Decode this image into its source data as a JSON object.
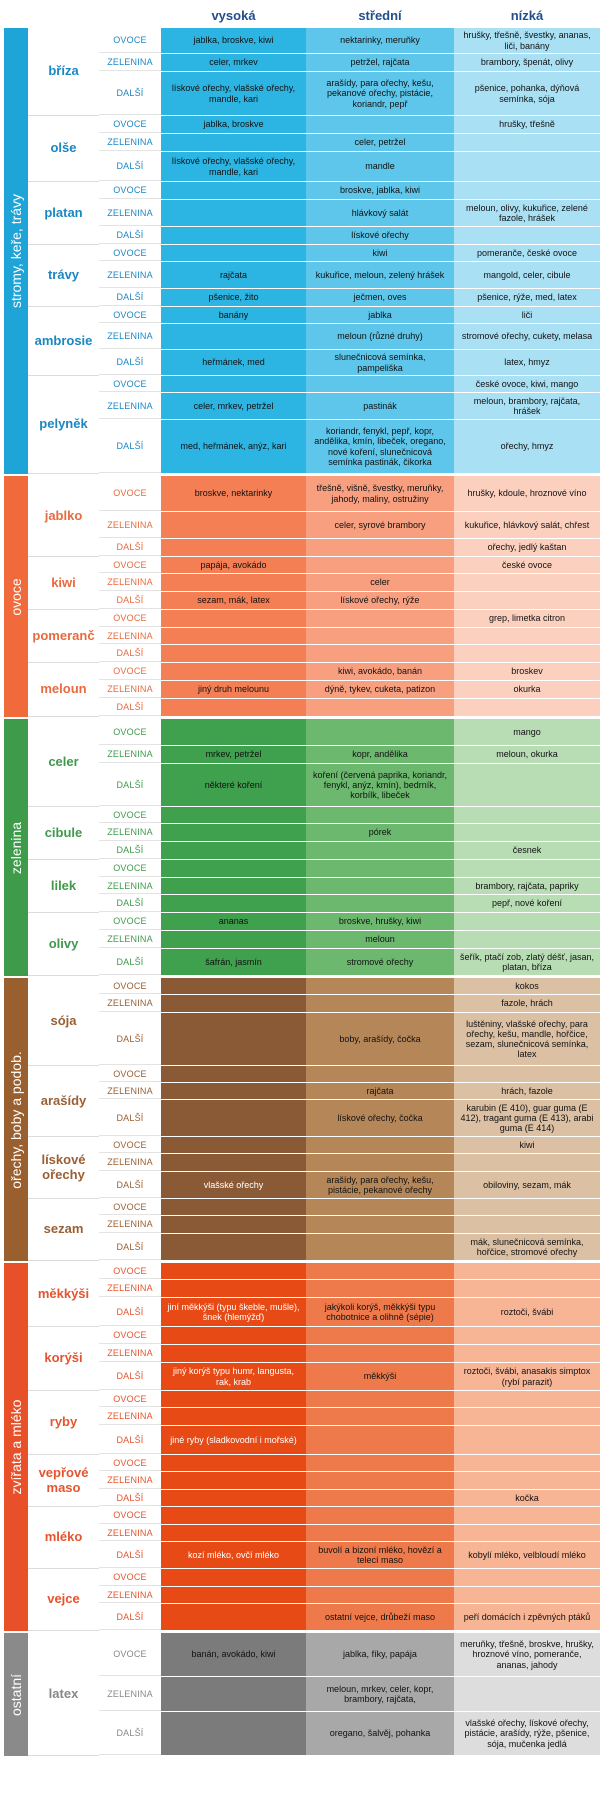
{
  "header": {
    "high": "vysoká",
    "medium": "střední",
    "low": "nízká"
  },
  "groups": [
    {
      "id": "trees",
      "label": "stromy, keře, trávy",
      "colors": {
        "bar": "#1fa4d8",
        "type": "#1b87c2",
        "c1": "#2cb4e2",
        "c2": "#5ec6ea",
        "c3": "#a9e0f4"
      },
      "items": [
        {
          "name": "bříza",
          "rows": [
            {
              "type": "OVOCE",
              "h": 26,
              "c": [
                "jablka, broskve, kiwi",
                "nektarinky, meruňky",
                "hrušky, třešně, švestky, ananas, liči, banány"
              ]
            },
            {
              "type": "ZELENINA",
              "h": 18,
              "c": [
                "celer, mrkev",
                "petržel, rajčata",
                "brambory, špenát, olivy"
              ]
            },
            {
              "type": "DALŠÍ",
              "h": 44,
              "c": [
                "lískové ořechy, vlašské ořechy, mandle, kari",
                "arašídy, para ořechy, kešu, pekanové ořechy, pistácie, koriandr, pepř",
                "pšenice, pohanka, dýňová semínka, sója"
              ]
            }
          ]
        },
        {
          "name": "olše",
          "rows": [
            {
              "type": "OVOCE",
              "h": 18,
              "c": [
                "jablka, broskve",
                "",
                "hrušky, třešně"
              ]
            },
            {
              "type": "ZELENINA",
              "h": 18,
              "c": [
                "",
                "celer, petržel",
                ""
              ]
            },
            {
              "type": "DALŠÍ",
              "h": 30,
              "c": [
                "lískové ořechy, vlašské ořechy, mandle, kari",
                "mandle",
                ""
              ]
            }
          ]
        },
        {
          "name": "platan",
          "rows": [
            {
              "type": "OVOCE",
              "h": 18,
              "c": [
                "",
                "broskve, jablka, kiwi",
                ""
              ]
            },
            {
              "type": "ZELENINA",
              "h": 27,
              "c": [
                "",
                "hlávkový salát",
                "meloun, olivy, kukuřice, zelené fazole, hrášek"
              ]
            },
            {
              "type": "DALŠÍ",
              "h": 18,
              "c": [
                "",
                "lískové ořechy",
                ""
              ]
            }
          ]
        },
        {
          "name": "trávy",
          "rows": [
            {
              "type": "OVOCE",
              "h": 17,
              "c": [
                "",
                "kiwi",
                "pomeranče, české ovoce"
              ]
            },
            {
              "type": "ZELENINA",
              "h": 27,
              "c": [
                "rajčata",
                "kukuřice, meloun, zelený hrášek",
                "mangold, celer, cibule"
              ]
            },
            {
              "type": "DALŠÍ",
              "h": 18,
              "c": [
                "pšenice, žito",
                "ječmen, oves",
                "pšenice, rýže, med, latex"
              ]
            }
          ]
        },
        {
          "name": "ambrosie",
          "rows": [
            {
              "type": "OVOCE",
              "h": 17,
              "c": [
                "banány",
                "jablka",
                "liči"
              ]
            },
            {
              "type": "ZELENINA",
              "h": 26,
              "c": [
                "",
                "meloun (různé druhy)",
                "stromové ořechy, cukety, melasa"
              ]
            },
            {
              "type": "DALŠÍ",
              "h": 26,
              "c": [
                "heřmánek, med",
                "slunečnicová semínka, pampeliška",
                "latex, hmyz"
              ]
            }
          ]
        },
        {
          "name": "pelyněk",
          "rows": [
            {
              "type": "OVOCE",
              "h": 17,
              "c": [
                "",
                "",
                "české ovoce, kiwi, mango"
              ]
            },
            {
              "type": "ZELENINA",
              "h": 27,
              "c": [
                "celer, mrkev, petržel",
                "pastinák",
                "meloun, brambory, rajčata, hrášek"
              ]
            },
            {
              "type": "DALŠÍ",
              "h": 54,
              "c": [
                "med, heřmánek, anýz, kari",
                "koriandr, fenykl, pepř, kopr, andělika, kmín, libeček, oregano, nové koření, slunečnicová semínka pastinák, čikorka",
                "ořechy, hmyz"
              ]
            }
          ]
        }
      ]
    },
    {
      "id": "fruit",
      "label": "ovoce",
      "colors": {
        "bar": "#f06a3c",
        "type": "#e86a3f",
        "c1": "#f47f55",
        "c2": "#f79f7f",
        "c3": "#fcd0bf"
      },
      "items": [
        {
          "name": "jablko",
          "rows": [
            {
              "type": "OVOCE",
              "h": 36,
              "c": [
                "broskve, nektarinky",
                "třešně, višně, švestky, meruňky, jahody, maliny, ostružiny",
                "hrušky, kdoule, hroznové víno"
              ]
            },
            {
              "type": "ZELENINA",
              "h": 27,
              "c": [
                "",
                "celer, syrové brambory",
                "kukuřice, hlávkový salát, chřest"
              ]
            },
            {
              "type": "DALŠÍ",
              "h": 18,
              "c": [
                "",
                "",
                "ořechy, jedlý kaštan"
              ]
            }
          ]
        },
        {
          "name": "kiwi",
          "rows": [
            {
              "type": "OVOCE",
              "h": 17,
              "c": [
                "papája, avokádo",
                "",
                "české ovoce"
              ]
            },
            {
              "type": "ZELENINA",
              "h": 18,
              "c": [
                "",
                "celer",
                ""
              ]
            },
            {
              "type": "DALŠÍ",
              "h": 18,
              "c": [
                "sezam, mák, latex",
                "lískové ořechy, rýže",
                ""
              ]
            }
          ]
        },
        {
          "name": "pomeranč",
          "rows": [
            {
              "type": "OVOCE",
              "h": 18,
              "c": [
                "",
                "",
                "grep, limetka citron"
              ]
            },
            {
              "type": "ZELENINA",
              "h": 17,
              "c": [
                "",
                "",
                ""
              ]
            },
            {
              "type": "DALŠÍ",
              "h": 18,
              "c": [
                "",
                "",
                ""
              ]
            }
          ]
        },
        {
          "name": "meloun",
          "rows": [
            {
              "type": "OVOCE",
              "h": 18,
              "c": [
                "",
                "kiwi, avokádo, banán",
                "broskev"
              ]
            },
            {
              "type": "ZELENINA",
              "h": 18,
              "c": [
                "jiný druh melounu",
                "dýně, tykev, cuketa, patizon",
                "okurka"
              ]
            },
            {
              "type": "DALŠÍ",
              "h": 18,
              "c": [
                "",
                "",
                ""
              ]
            }
          ]
        }
      ]
    },
    {
      "id": "veg",
      "label": "zelenina",
      "colors": {
        "bar": "#3d9b4a",
        "type": "#3f9a4c",
        "c1": "#3fa04d",
        "c2": "#6cb86f",
        "c3": "#b8ddb5"
      },
      "items": [
        {
          "name": "celer",
          "rows": [
            {
              "type": "OVOCE",
              "h": 27,
              "c": [
                "",
                "",
                "mango"
              ]
            },
            {
              "type": "ZELENINA",
              "h": 18,
              "c": [
                "mrkev, petržel",
                "kopr, andělika",
                "meloun, okurka"
              ]
            },
            {
              "type": "DALŠÍ",
              "h": 43,
              "c": [
                "některé koření",
                "koření (červená paprika, koriandr, fenykl, anýz, kmín), bedrník, korbílk, libeček",
                ""
              ]
            }
          ]
        },
        {
          "name": "cibule",
          "rows": [
            {
              "type": "OVOCE",
              "h": 17,
              "c": [
                "",
                "",
                ""
              ]
            },
            {
              "type": "ZELENINA",
              "h": 18,
              "c": [
                "",
                "pórek",
                ""
              ]
            },
            {
              "type": "DALŠÍ",
              "h": 18,
              "c": [
                "",
                "",
                "česnek"
              ]
            }
          ]
        },
        {
          "name": "lilek",
          "rows": [
            {
              "type": "OVOCE",
              "h": 18,
              "c": [
                "",
                "",
                ""
              ]
            },
            {
              "type": "ZELENINA",
              "h": 17,
              "c": [
                "",
                "",
                "brambory, rajčata, papriky"
              ]
            },
            {
              "type": "DALŠÍ",
              "h": 18,
              "c": [
                "",
                "",
                "pepř, nové koření"
              ]
            }
          ]
        },
        {
          "name": "olivy",
          "rows": [
            {
              "type": "OVOCE",
              "h": 18,
              "c": [
                "ananas",
                "broskve, hrušky, kiwi",
                ""
              ]
            },
            {
              "type": "ZELENINA",
              "h": 18,
              "c": [
                "",
                "meloun",
                ""
              ]
            },
            {
              "type": "DALŠÍ",
              "h": 27,
              "c": [
                "šafrán, jasmín",
                "stromové ořechy",
                "šeřík, ptačí zob, zlatý déšť, jasan, platan, bříza"
              ]
            }
          ]
        }
      ]
    },
    {
      "id": "nuts",
      "label": "ořechy, boby a podob.",
      "colors": {
        "bar": "#9a5f2f",
        "type": "#9a5f33",
        "c1": "#8a5a36",
        "c2": "#b58658",
        "c3": "#dcc0a4"
      },
      "items": [
        {
          "name": "sója",
          "rows": [
            {
              "type": "OVOCE",
              "h": 17,
              "c": [
                "",
                "",
                "kokos"
              ]
            },
            {
              "type": "ZELENINA",
              "h": 18,
              "c": [
                "",
                "",
                "fazole, hrách"
              ]
            },
            {
              "type": "DALŠÍ",
              "h": 53,
              "c": [
                "",
                "boby, arašídy, čočka",
                "luštěniny, vlašské ořechy, para ořechy, kešu, mandle, hořčice, sezam, slunečnicová semínka, latex"
              ]
            }
          ]
        },
        {
          "name": "arašídy",
          "rows": [
            {
              "type": "OVOCE",
              "h": 17,
              "c": [
                "",
                "",
                ""
              ]
            },
            {
              "type": "ZELENINA",
              "h": 17,
              "c": [
                "",
                "rajčata",
                "hrách, fazole"
              ]
            },
            {
              "type": "DALŠÍ",
              "h": 37,
              "c": [
                "",
                "lískové ořechy, čočka",
                "karubin (E 410), guar guma (E 412), tragant guma (E 413), arabi guma (E 414)"
              ]
            }
          ]
        },
        {
          "name": "lískové ořechy",
          "rows": [
            {
              "type": "OVOCE",
              "h": 17,
              "c": [
                "",
                "",
                "kiwi"
              ]
            },
            {
              "type": "ZELENINA",
              "h": 18,
              "c": [
                "",
                "",
                ""
              ]
            },
            {
              "type": "DALŠÍ",
              "h": 27,
              "c": [
                "vlašské ořechy",
                "arašídy, para ořechy, kešu, pistácie, pekanové ořechy",
                "obiloviny, sezam, mák"
              ]
            }
          ]
        },
        {
          "name": "sezam",
          "rows": [
            {
              "type": "OVOCE",
              "h": 17,
              "c": [
                "",
                "",
                ""
              ]
            },
            {
              "type": "ZELENINA",
              "h": 18,
              "c": [
                "",
                "",
                ""
              ]
            },
            {
              "type": "DALŠÍ",
              "h": 27,
              "c": [
                "",
                "",
                "mák, slunečnicová semínka, hořčice, stromové ořechy"
              ]
            }
          ]
        }
      ]
    },
    {
      "id": "animals",
      "label": "zvířata a mléko",
      "colors": {
        "bar": "#e8502a",
        "type": "#e4552f",
        "c1": "#e84a16",
        "c2": "#ee7a4c",
        "c3": "#f7b596"
      },
      "items": [
        {
          "name": "měkkýši",
          "rows": [
            {
              "type": "OVOCE",
              "h": 17,
              "c": [
                "",
                "",
                ""
              ]
            },
            {
              "type": "ZELENINA",
              "h": 18,
              "c": [
                "",
                "",
                ""
              ]
            },
            {
              "type": "DALŠÍ",
              "h": 29,
              "c": [
                "jiní měkkýši (typu škeble, mušle), šnek (hlemýžď)",
                "jakýkoli korýš, měkkýši typu chobotnice a olihně (sépie)",
                "roztoči, švábi"
              ]
            }
          ]
        },
        {
          "name": "korýši",
          "rows": [
            {
              "type": "OVOCE",
              "h": 18,
              "c": [
                "",
                "",
                ""
              ]
            },
            {
              "type": "ZELENINA",
              "h": 18,
              "c": [
                "",
                "",
                ""
              ]
            },
            {
              "type": "DALŠÍ",
              "h": 28,
              "c": [
                "jiný korýš typu humr, langusta, rak, krab",
                "měkkýši",
                "roztoči, švábi, anasakis simptox (rybí parazit)"
              ]
            }
          ]
        },
        {
          "name": "ryby",
          "rows": [
            {
              "type": "OVOCE",
              "h": 17,
              "c": [
                "",
                "",
                ""
              ]
            },
            {
              "type": "ZELENINA",
              "h": 18,
              "c": [
                "",
                "",
                ""
              ]
            },
            {
              "type": "DALŠÍ",
              "h": 29,
              "c": [
                "jiné ryby (sladkovodní i mořské)",
                "",
                ""
              ]
            }
          ]
        },
        {
          "name": "vepřové maso",
          "rows": [
            {
              "type": "OVOCE",
              "h": 17,
              "c": [
                "",
                "",
                ""
              ]
            },
            {
              "type": "ZELENINA",
              "h": 18,
              "c": [
                "",
                "",
                ""
              ]
            },
            {
              "type": "DALŠÍ",
              "h": 17,
              "c": [
                "",
                "",
                "kočka"
              ]
            }
          ]
        },
        {
          "name": "mléko",
          "rows": [
            {
              "type": "OVOCE",
              "h": 18,
              "c": [
                "",
                "",
                ""
              ]
            },
            {
              "type": "ZELENINA",
              "h": 17,
              "c": [
                "",
                "",
                ""
              ]
            },
            {
              "type": "DALŠÍ",
              "h": 27,
              "c": [
                "kozí mléko, ovčí mléko",
                "buvolí a bizoní mléko, hovězí a telecí maso",
                "kobylí mléko, velbloudí mléko"
              ]
            }
          ]
        },
        {
          "name": "vejce",
          "rows": [
            {
              "type": "OVOCE",
              "h": 18,
              "c": [
                "",
                "",
                ""
              ]
            },
            {
              "type": "ZELENINA",
              "h": 17,
              "c": [
                "",
                "",
                ""
              ]
            },
            {
              "type": "DALŠÍ",
              "h": 27,
              "c": [
                "",
                "ostatní vejce, drůbeží maso",
                "peří domácích i zpěvných ptáků"
              ]
            }
          ]
        }
      ]
    },
    {
      "id": "other",
      "label": "ostatní",
      "colors": {
        "bar": "#8a8a8a",
        "type": "#888888",
        "c1": "#7b7b7b",
        "c2": "#a8a8a8",
        "c3": "#dddddd"
      },
      "items": [
        {
          "name": "latex",
          "rows": [
            {
              "type": "OVOCE",
              "h": 44,
              "c": [
                "banán, avokádo, kiwi",
                "jablka, fíky, papája",
                "meruňky, třešně, broskve, hrušky, hroznové víno, pomeranče, ananas, jahody"
              ]
            },
            {
              "type": "ZELENINA",
              "h": 35,
              "c": [
                "",
                "meloun, mrkev, celer, kopr, brambory, rajčata,",
                ""
              ]
            },
            {
              "type": "DALŠÍ",
              "h": 44,
              "c": [
                "",
                "oregano, šalvěj, pohanka",
                "vlašské ořechy, lískové ořechy, pistácie, arašídy, rýže, pšenice, sója, mučenka jedlá"
              ]
            }
          ]
        }
      ]
    }
  ]
}
